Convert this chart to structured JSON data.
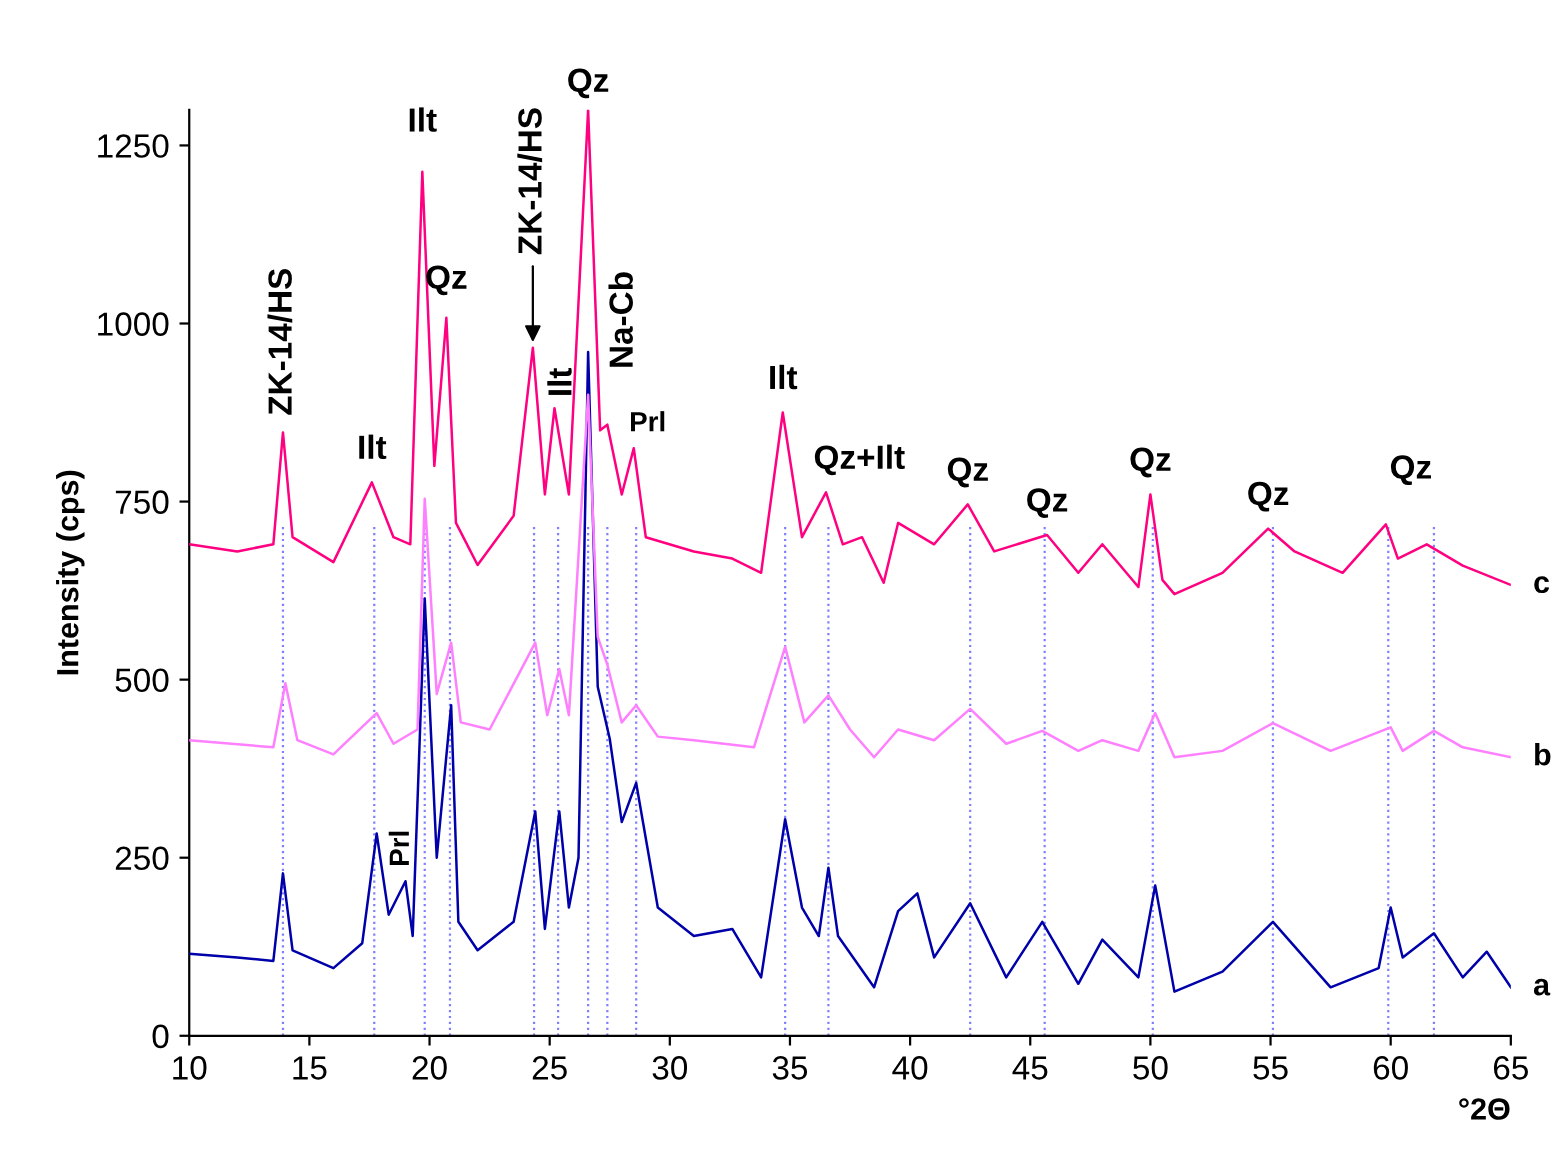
{
  "chart_data": {
    "type": "line",
    "xlabel": "°2Θ",
    "ylabel": "Intensity (cps)",
    "xlim": [
      10,
      65
    ],
    "xticks": [
      10,
      15,
      20,
      25,
      30,
      35,
      40,
      45,
      50,
      55,
      60,
      65
    ],
    "ylim": [
      0,
      1300
    ],
    "yticks": [
      0,
      250,
      500,
      750,
      1000,
      1250
    ],
    "grid": false,
    "legend": false,
    "marker": "none",
    "line_style": "solid",
    "series": [
      {
        "color": "#0000aa",
        "x": [
          10,
          12,
          13.5,
          13.9,
          14.3,
          16,
          17.2,
          17.8,
          18.3,
          19,
          19.3,
          19.8,
          20.3,
          20.9,
          21.2,
          22,
          23.5,
          24.4,
          24.8,
          25.4,
          25.8,
          26.2,
          26.6,
          27.0,
          27.5,
          28.0,
          28.6,
          29.5,
          31,
          32.6,
          33.8,
          34.8,
          35.5,
          36.2,
          36.6,
          37,
          38.5,
          39.5,
          40.3,
          41,
          42.5,
          44,
          45.5,
          47,
          48,
          49.5,
          50.2,
          51,
          53,
          55.1,
          57.5,
          59.5,
          60,
          60.5,
          61.8,
          63,
          64,
          65
        ],
        "values": [
          115,
          110,
          105,
          228,
          120,
          95,
          130,
          284,
          170,
          217,
          140,
          614,
          250,
          464,
          160,
          120,
          160,
          315,
          150,
          315,
          180,
          250,
          960,
          490,
          417,
          300,
          355,
          180,
          140,
          150,
          82,
          304,
          180,
          140,
          236,
          140,
          68,
          175,
          200,
          110,
          186,
          82,
          160,
          73,
          135,
          82,
          211,
          62,
          90,
          160,
          68,
          95,
          180,
          110,
          144,
          82,
          118,
          68
        ]
      },
      {
        "color": "#ff80ff",
        "x": [
          10,
          13.5,
          14,
          14.5,
          16,
          17.8,
          18.5,
          19.5,
          19.8,
          20.3,
          20.9,
          21.3,
          22.5,
          24.4,
          24.9,
          25.4,
          25.8,
          26.6,
          27.0,
          27.4,
          28,
          28.6,
          29.5,
          31,
          33.5,
          34.8,
          35.6,
          36.6,
          37.5,
          38.5,
          39.5,
          41,
          42.5,
          44,
          45.5,
          47,
          48,
          49.5,
          50.2,
          51,
          53,
          55.1,
          57.5,
          60,
          60.5,
          61.8,
          63,
          65
        ],
        "values": [
          415,
          405,
          495,
          415,
          395,
          453,
          410,
          430,
          754,
          480,
          552,
          440,
          430,
          552,
          450,
          515,
          450,
          900,
          560,
          521,
          440,
          464,
          420,
          415,
          405,
          546,
          440,
          478,
          430,
          391,
          430,
          415,
          459,
          410,
          428,
          400,
          415,
          400,
          453,
          391,
          400,
          439,
          400,
          433,
          400,
          428,
          405,
          391
        ]
      },
      {
        "color": "#ff0080",
        "x": [
          10,
          12,
          13.5,
          13.9,
          14.3,
          16,
          17.6,
          18.5,
          19.2,
          19.7,
          20.2,
          20.7,
          21.1,
          22,
          23.5,
          24.3,
          24.8,
          25.2,
          25.8,
          26.6,
          27.1,
          27.4,
          28,
          28.5,
          29,
          31,
          32.6,
          33.8,
          34.7,
          35.5,
          36.5,
          37.2,
          38,
          38.9,
          39.5,
          41,
          42.4,
          43.5,
          45.7,
          47,
          48,
          49.5,
          50.0,
          50.5,
          51,
          53,
          54.9,
          56,
          58,
          59.8,
          60.3,
          61.5,
          63,
          65
        ],
        "values": [
          690,
          680,
          690,
          847,
          700,
          665,
          777,
          700,
          690,
          1213,
          800,
          1008,
          720,
          661,
          730,
          966,
          760,
          881,
          760,
          1300,
          850,
          858,
          760,
          825,
          700,
          680,
          670,
          650,
          875,
          700,
          763,
          690,
          700,
          636,
          720,
          690,
          746,
          680,
          703,
          650,
          690,
          630,
          760,
          640,
          620,
          650,
          712,
          680,
          650,
          718,
          670,
          690,
          660,
          633
        ]
      }
    ],
    "ref_lines": [
      {
        "axis": "x",
        "value": 13.9,
        "color": "#8080ff",
        "line_style": "dotted"
      },
      {
        "axis": "x",
        "value": 17.7,
        "color": "#8080ff",
        "line_style": "dotted"
      },
      {
        "axis": "x",
        "value": 19.8,
        "color": "#8080ff",
        "line_style": "dotted"
      },
      {
        "axis": "x",
        "value": 20.85,
        "color": "#8080ff",
        "line_style": "dotted"
      },
      {
        "axis": "x",
        "value": 24.35,
        "color": "#8080ff",
        "line_style": "dotted"
      },
      {
        "axis": "x",
        "value": 25.35,
        "color": "#8080ff",
        "line_style": "dotted"
      },
      {
        "axis": "x",
        "value": 26.6,
        "color": "#8080ff",
        "line_style": "dotted"
      },
      {
        "axis": "x",
        "value": 27.4,
        "color": "#8080ff",
        "line_style": "dotted"
      },
      {
        "axis": "x",
        "value": 28.6,
        "color": "#8080ff",
        "line_style": "dotted"
      },
      {
        "axis": "x",
        "value": 34.8,
        "color": "#8080ff",
        "line_style": "dotted"
      },
      {
        "axis": "x",
        "value": 36.6,
        "color": "#8080ff",
        "line_style": "dotted"
      },
      {
        "axis": "x",
        "value": 42.5,
        "color": "#8080ff",
        "line_style": "dotted"
      },
      {
        "axis": "x",
        "value": 45.6,
        "color": "#8080ff",
        "line_style": "dotted"
      },
      {
        "axis": "x",
        "value": 50.1,
        "color": "#8080ff",
        "line_style": "dotted"
      },
      {
        "axis": "x",
        "value": 55.1,
        "color": "#8080ff",
        "line_style": "dotted"
      },
      {
        "axis": "x",
        "value": 59.9,
        "color": "#8080ff",
        "line_style": "dotted"
      },
      {
        "axis": "x",
        "value": 61.8,
        "color": "#8080ff",
        "line_style": "dotted"
      }
    ],
    "annotations": [
      {
        "text": "ZK-14/HS",
        "x": 13.9,
        "y": 847
      },
      {
        "text": "Ilt",
        "x": 17.6,
        "y": 777
      },
      {
        "text": "Ilt",
        "x": 19.7,
        "y": 1213
      },
      {
        "text": "Qz",
        "x": 20.7,
        "y": 1008
      },
      {
        "text": "ZK-14/HS",
        "x": 24.3,
        "y": 966
      },
      {
        "text": "Ilt",
        "x": 25.2,
        "y": 881
      },
      {
        "text": "Qz",
        "x": 26.6,
        "y": 1300
      },
      {
        "text": "Na-Cb",
        "x": 27.4,
        "y": 858
      },
      {
        "text": "Prl",
        "x": 28.5,
        "y": 825
      },
      {
        "text": "Ilt",
        "x": 34.7,
        "y": 875
      },
      {
        "text": "Qz+Ilt",
        "x": 36.5,
        "y": 763
      },
      {
        "text": "Qz",
        "x": 42.4,
        "y": 746
      },
      {
        "text": "Qz",
        "x": 45.7,
        "y": 703
      },
      {
        "text": "Qz",
        "x": 50.0,
        "y": 760
      },
      {
        "text": "Qz",
        "x": 54.9,
        "y": 712
      },
      {
        "text": "Qz",
        "x": 59.8,
        "y": 718
      },
      {
        "text": "Prl",
        "x": 17.8,
        "y": 284
      },
      {
        "text": "a",
        "x": 65,
        "y": 68
      },
      {
        "text": "b",
        "x": 65,
        "y": 391
      },
      {
        "text": "c",
        "x": 65,
        "y": 633
      }
    ]
  }
}
